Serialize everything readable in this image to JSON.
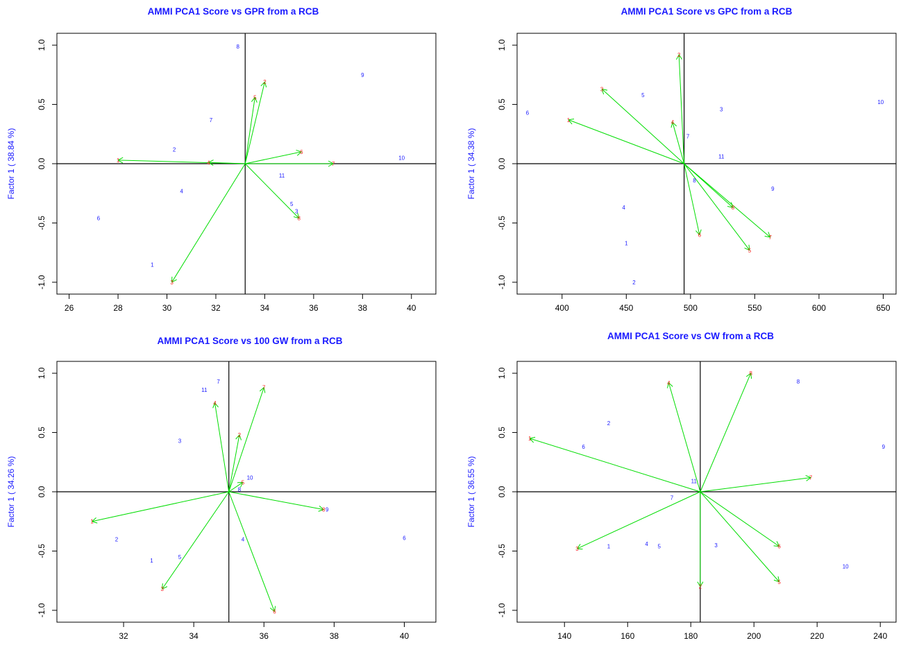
{
  "colors": {
    "title": "#1a1aff",
    "genotype_label": "#1a1aff",
    "environment_label": "#ff2020",
    "vector": "#00dd00",
    "axis": "#000000"
  },
  "chart_data": [
    {
      "type": "scatter",
      "title": "AMMI PCA1 Score vs GPR from a RCB",
      "xlabel": "",
      "ylabel": "Factor 1 ( 38.84 %)",
      "xlim": [
        25.5,
        41
      ],
      "ylim": [
        -1.1,
        1.1
      ],
      "xticks": [
        26,
        28,
        30,
        32,
        34,
        36,
        38,
        40
      ],
      "yticks": [
        -1.0,
        -0.5,
        0.0,
        0.5,
        1.0
      ],
      "ytick_labels": [
        "-1.0",
        "-0.5",
        "0.0",
        "0.5",
        "1.0"
      ],
      "grand_mean": 33.2,
      "genotypes": [
        {
          "label": "1",
          "x": 29.4,
          "y": -0.85
        },
        {
          "label": "2",
          "x": 30.3,
          "y": 0.12
        },
        {
          "label": "3",
          "x": 35.3,
          "y": -0.4
        },
        {
          "label": "4",
          "x": 30.6,
          "y": -0.23
        },
        {
          "label": "5",
          "x": 35.1,
          "y": -0.34
        },
        {
          "label": "6",
          "x": 27.2,
          "y": -0.46
        },
        {
          "label": "7",
          "x": 31.8,
          "y": 0.37
        },
        {
          "label": "8",
          "x": 32.9,
          "y": 0.99
        },
        {
          "label": "9",
          "x": 38.0,
          "y": 0.75
        },
        {
          "label": "10",
          "x": 39.6,
          "y": 0.05
        },
        {
          "label": "11",
          "x": 34.7,
          "y": -0.1
        }
      ],
      "environments": [
        {
          "label": "1",
          "x": 28.0,
          "y": 0.03
        },
        {
          "label": "2",
          "x": 34.0,
          "y": 0.69
        },
        {
          "label": "3",
          "x": 30.2,
          "y": -1.0
        },
        {
          "label": "4",
          "x": 31.7,
          "y": 0.01
        },
        {
          "label": "5",
          "x": 33.6,
          "y": 0.56
        },
        {
          "label": "6",
          "x": 35.5,
          "y": 0.1
        },
        {
          "label": "7",
          "x": 36.8,
          "y": 0.0
        },
        {
          "label": "8",
          "x": 35.4,
          "y": -0.46
        }
      ]
    },
    {
      "type": "scatter",
      "title": "AMMI PCA1 Score vs GPC from a RCB",
      "xlabel": "",
      "ylabel": "Factor 1 ( 34.38 %)",
      "xlim": [
        365,
        660
      ],
      "ylim": [
        -1.1,
        1.1
      ],
      "xticks": [
        400,
        450,
        500,
        550,
        600,
        650
      ],
      "yticks": [
        -1.0,
        -0.5,
        0.0,
        0.5,
        1.0
      ],
      "ytick_labels": [
        "-1.0",
        "-0.5",
        "0.0",
        "0.5",
        "1.0"
      ],
      "grand_mean": 495,
      "genotypes": [
        {
          "label": "1",
          "x": 450,
          "y": -0.67
        },
        {
          "label": "2",
          "x": 456,
          "y": -1.0
        },
        {
          "label": "3",
          "x": 524,
          "y": 0.46
        },
        {
          "label": "4",
          "x": 448,
          "y": -0.37
        },
        {
          "label": "5",
          "x": 463,
          "y": 0.58
        },
        {
          "label": "6",
          "x": 373,
          "y": 0.43
        },
        {
          "label": "7",
          "x": 498,
          "y": 0.23
        },
        {
          "label": "8",
          "x": 503,
          "y": -0.14
        },
        {
          "label": "9",
          "x": 564,
          "y": -0.21
        },
        {
          "label": "10",
          "x": 648,
          "y": 0.52
        },
        {
          "label": "11",
          "x": 524,
          "y": 0.06
        }
      ],
      "environments": [
        {
          "label": "1",
          "x": 405,
          "y": 0.37
        },
        {
          "label": "2",
          "x": 491,
          "y": 0.92
        },
        {
          "label": "3",
          "x": 431,
          "y": 0.63
        },
        {
          "label": "4",
          "x": 486,
          "y": 0.35
        },
        {
          "label": "5",
          "x": 546,
          "y": -0.73
        },
        {
          "label": "6",
          "x": 507,
          "y": -0.6
        },
        {
          "label": "7",
          "x": 562,
          "y": -0.62
        },
        {
          "label": "8",
          "x": 533,
          "y": -0.37
        }
      ]
    },
    {
      "type": "scatter",
      "title": "AMMI PCA1 Score vs 100 GW from a RCB",
      "xlabel": "",
      "ylabel": "Factor 1 ( 34.26 %)",
      "xlim": [
        30.1,
        40.9
      ],
      "ylim": [
        -1.1,
        1.1
      ],
      "xticks": [
        32,
        34,
        36,
        38,
        40
      ],
      "yticks": [
        -1.0,
        -0.5,
        0.0,
        0.5,
        1.0
      ],
      "ytick_labels": [
        "-1.0",
        "-0.5",
        "0.0",
        "0.5",
        "1.0"
      ],
      "grand_mean": 35.0,
      "genotypes": [
        {
          "label": "1",
          "x": 32.8,
          "y": -0.58
        },
        {
          "label": "2",
          "x": 31.8,
          "y": -0.4
        },
        {
          "label": "3",
          "x": 33.6,
          "y": 0.43
        },
        {
          "label": "4",
          "x": 35.4,
          "y": -0.4
        },
        {
          "label": "5",
          "x": 33.6,
          "y": -0.55
        },
        {
          "label": "6",
          "x": 40.0,
          "y": -0.39
        },
        {
          "label": "7",
          "x": 34.7,
          "y": 0.93
        },
        {
          "label": "8",
          "x": 35.3,
          "y": 0.02
        },
        {
          "label": "9",
          "x": 37.8,
          "y": -0.15
        },
        {
          "label": "10",
          "x": 35.6,
          "y": 0.12
        },
        {
          "label": "11",
          "x": 34.3,
          "y": 0.86
        }
      ],
      "environments": [
        {
          "label": "1",
          "x": 31.1,
          "y": -0.25
        },
        {
          "label": "2",
          "x": 35.3,
          "y": 0.48
        },
        {
          "label": "3",
          "x": 33.1,
          "y": -0.82
        },
        {
          "label": "4",
          "x": 34.6,
          "y": 0.75
        },
        {
          "label": "5",
          "x": 35.4,
          "y": 0.08
        },
        {
          "label": "6",
          "x": 36.3,
          "y": -1.01
        },
        {
          "label": "7",
          "x": 36.0,
          "y": 0.88
        },
        {
          "label": "8",
          "x": 37.7,
          "y": -0.15
        }
      ]
    },
    {
      "type": "scatter",
      "title": "AMMI PCA1 Score vs CW from a RCB",
      "xlabel": "",
      "ylabel": "Factor 1 ( 36.55 %)",
      "xlim": [
        125,
        245
      ],
      "ylim": [
        -1.1,
        1.1
      ],
      "xticks": [
        140,
        160,
        180,
        200,
        220,
        240
      ],
      "yticks": [
        -1.0,
        -0.5,
        0.0,
        0.5,
        1.0
      ],
      "ytick_labels": [
        "-1.0",
        "-0.5",
        "0.0",
        "0.5",
        "1.0"
      ],
      "grand_mean": 183,
      "genotypes": [
        {
          "label": "1",
          "x": 154,
          "y": -0.46
        },
        {
          "label": "2",
          "x": 154,
          "y": 0.58
        },
        {
          "label": "3",
          "x": 188,
          "y": -0.45
        },
        {
          "label": "4",
          "x": 166,
          "y": -0.44
        },
        {
          "label": "5",
          "x": 170,
          "y": -0.46
        },
        {
          "label": "6",
          "x": 146,
          "y": 0.38
        },
        {
          "label": "7",
          "x": 174,
          "y": -0.05
        },
        {
          "label": "8",
          "x": 214,
          "y": 0.93
        },
        {
          "label": "9",
          "x": 241,
          "y": 0.38
        },
        {
          "label": "10",
          "x": 229,
          "y": -0.63
        },
        {
          "label": "11",
          "x": 181,
          "y": 0.09
        }
      ],
      "environments": [
        {
          "label": "1",
          "x": 129,
          "y": 0.45
        },
        {
          "label": "2",
          "x": 183,
          "y": -0.8
        },
        {
          "label": "3",
          "x": 144,
          "y": -0.48
        },
        {
          "label": "4",
          "x": 173,
          "y": 0.92
        },
        {
          "label": "5",
          "x": 208,
          "y": -0.76
        },
        {
          "label": "6",
          "x": 208,
          "y": -0.46
        },
        {
          "label": "7",
          "x": 218,
          "y": 0.12
        },
        {
          "label": "8",
          "x": 199,
          "y": 1.0
        }
      ]
    }
  ]
}
